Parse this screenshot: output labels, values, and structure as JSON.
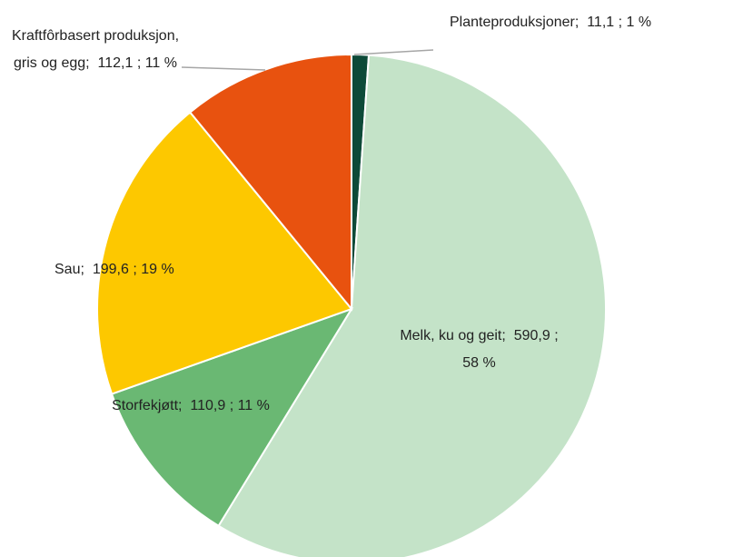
{
  "chart_data": {
    "type": "pie",
    "categories": [
      "Planteproduksjoner",
      "Melk, ku og geit",
      "Storfekjøtt",
      "Sau",
      "Kraftfôrbasert produksjon, gris og egg"
    ],
    "values": [
      11.1,
      590.9,
      110.9,
      199.6,
      112.1
    ],
    "value_labels": [
      "11,1",
      "590,9",
      "110,9",
      "199,6",
      "112,1"
    ],
    "percent_labels": [
      "1 %",
      "58 %",
      "11 %",
      "19 %",
      "11 %"
    ],
    "separator": ";",
    "colors": [
      "#0d4a38",
      "#c4e3c8",
      "#6ab873",
      "#fdc800",
      "#e8520f"
    ]
  }
}
